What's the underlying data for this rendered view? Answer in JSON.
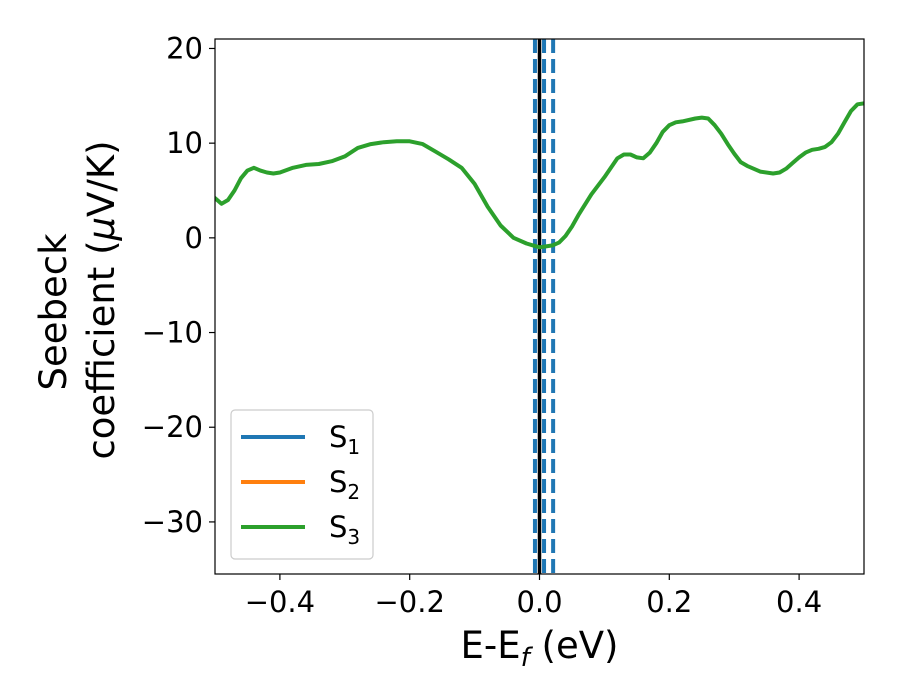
{
  "chart_data": {
    "type": "line",
    "xlabel": {
      "main": "E-E",
      "sub": "f",
      "suffix": " (eV)"
    },
    "ylabel": {
      "line1": "Seebeck",
      "line2_prefix": "coefficient  (",
      "line2_mu": "μ",
      "line2_suffix": "V/K)"
    },
    "xlim": [
      -0.5,
      0.5
    ],
    "ylim": [
      -35.5,
      21
    ],
    "xticks": [
      -0.4,
      -0.2,
      0.0,
      0.2,
      0.4
    ],
    "xtick_labels": [
      "−0.4",
      "−0.2",
      "0.0",
      "0.2",
      "0.4"
    ],
    "yticks": [
      -30,
      -20,
      -10,
      0,
      10,
      20
    ],
    "ytick_labels": [
      "−30",
      "−20",
      "−10",
      "0",
      "10",
      "20"
    ],
    "legend_position": "lower-left",
    "series": [
      {
        "name": "S",
        "sub": "1",
        "color": "#1f77b4",
        "x": [],
        "y": []
      },
      {
        "name": "S",
        "sub": "2",
        "color": "#ff7f0e",
        "x": [],
        "y": []
      },
      {
        "name": "S",
        "sub": "3",
        "color": "#2ca02c",
        "x": [
          -0.5,
          -0.49,
          -0.48,
          -0.47,
          -0.46,
          -0.45,
          -0.44,
          -0.43,
          -0.42,
          -0.41,
          -0.4,
          -0.38,
          -0.36,
          -0.34,
          -0.32,
          -0.3,
          -0.28,
          -0.26,
          -0.24,
          -0.22,
          -0.2,
          -0.18,
          -0.16,
          -0.14,
          -0.12,
          -0.1,
          -0.08,
          -0.06,
          -0.04,
          -0.02,
          -0.01,
          0.0,
          0.01,
          0.02,
          0.03,
          0.04,
          0.05,
          0.06,
          0.08,
          0.1,
          0.12,
          0.13,
          0.14,
          0.15,
          0.16,
          0.17,
          0.18,
          0.19,
          0.2,
          0.21,
          0.22,
          0.24,
          0.25,
          0.26,
          0.27,
          0.28,
          0.29,
          0.3,
          0.31,
          0.32,
          0.34,
          0.36,
          0.37,
          0.38,
          0.39,
          0.4,
          0.41,
          0.42,
          0.43,
          0.44,
          0.45,
          0.46,
          0.47,
          0.48,
          0.49,
          0.5
        ],
        "y": [
          4.2,
          3.6,
          4.0,
          5.0,
          6.3,
          7.1,
          7.4,
          7.1,
          6.9,
          6.8,
          6.9,
          7.4,
          7.7,
          7.8,
          8.1,
          8.6,
          9.5,
          9.9,
          10.1,
          10.2,
          10.2,
          9.9,
          9.1,
          8.3,
          7.4,
          5.7,
          3.3,
          1.3,
          0.0,
          -0.6,
          -0.8,
          -1.0,
          -0.9,
          -0.8,
          -0.5,
          0.2,
          1.2,
          2.4,
          4.6,
          6.4,
          8.4,
          8.8,
          8.8,
          8.5,
          8.4,
          9.0,
          10.0,
          11.2,
          11.9,
          12.2,
          12.3,
          12.6,
          12.7,
          12.6,
          11.9,
          11.0,
          9.9,
          8.9,
          8.0,
          7.6,
          7.0,
          6.8,
          6.9,
          7.3,
          7.9,
          8.5,
          9.0,
          9.3,
          9.4,
          9.6,
          10.1,
          11.0,
          12.2,
          13.4,
          14.1,
          14.2
        ]
      }
    ],
    "vlines": [
      {
        "x": 0.0,
        "color": "#000000",
        "style": "solid"
      },
      {
        "x": -0.007,
        "color": "#1f77b4",
        "style": "dashed"
      },
      {
        "x": 0.007,
        "color": "#1f77b4",
        "style": "dashed"
      },
      {
        "x": 0.021,
        "color": "#1f77b4",
        "style": "dashed"
      }
    ]
  }
}
